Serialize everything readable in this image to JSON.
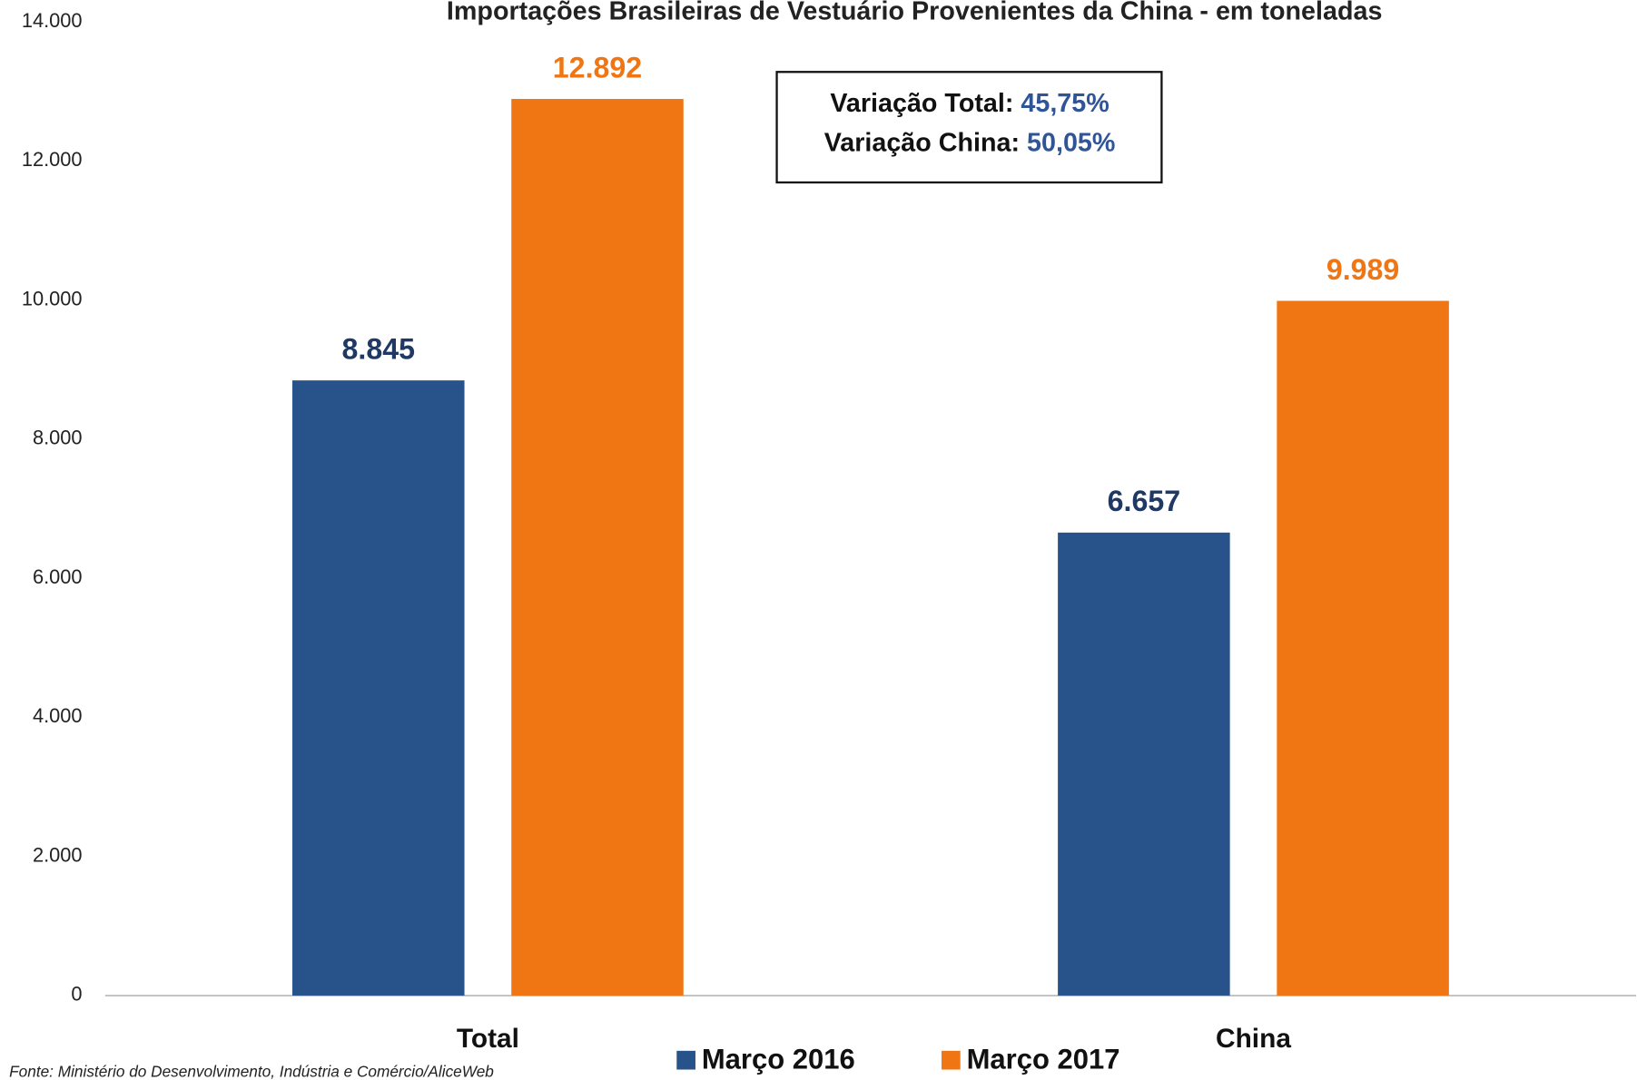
{
  "chart_data": {
    "type": "bar",
    "title": "Importações Brasileiras de Vestuário Provenientes da China - em toneladas",
    "categories": [
      "Total",
      "China"
    ],
    "series": [
      {
        "name": "Março 2016",
        "color": "#27528a",
        "label_color": "#1f3864",
        "values": [
          8845,
          6657
        ],
        "value_labels": [
          "8.845",
          "6.657"
        ]
      },
      {
        "name": "Março 2017",
        "color": "#f07613",
        "label_color": "#f07613",
        "values": [
          12892,
          9989
        ],
        "value_labels": [
          "12.892",
          "9.989"
        ]
      }
    ],
    "ylim": [
      0,
      14000
    ],
    "yticks": [
      0,
      {
        "value": 2000,
        "label": "2.000"
      },
      {
        "value": 4000,
        "label": "4.000"
      },
      {
        "value": 6000,
        "label": "6.000"
      },
      {
        "value": 8000,
        "label": "8.000"
      },
      {
        "value": 10000,
        "label": "10.000"
      },
      {
        "value": 12000,
        "label": "12.000"
      },
      {
        "value": 14000,
        "label": "14.000"
      }
    ],
    "grid": false,
    "legend": "bottom",
    "annotations": [
      {
        "label": "Variação Total:",
        "value": "45,75%"
      },
      {
        "label": "Variação China:",
        "value": "50,05%"
      }
    ],
    "source": "Fonte: Ministério do Desenvolvimento, Indústria e Comércio/AliceWeb"
  }
}
